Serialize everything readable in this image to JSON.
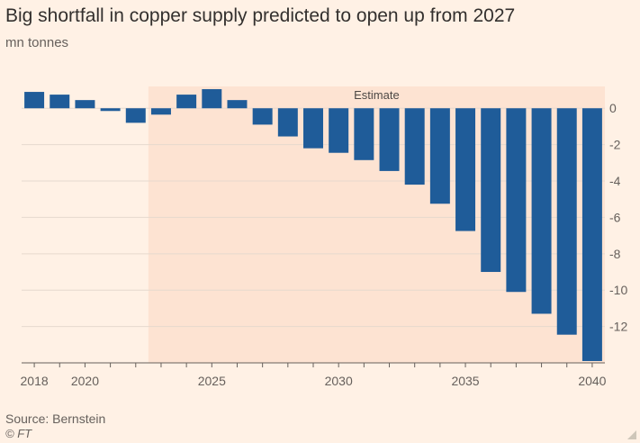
{
  "chart_data": {
    "type": "bar",
    "title": "Big shortfall in copper supply predicted to open up from 2027",
    "subtitle": "mn tonnes",
    "x": [
      2018,
      2019,
      2020,
      2021,
      2022,
      2023,
      2024,
      2025,
      2026,
      2027,
      2028,
      2029,
      2030,
      2031,
      2032,
      2033,
      2034,
      2035,
      2036,
      2037,
      2038,
      2039,
      2040
    ],
    "values": [
      0.9,
      0.75,
      0.45,
      -0.15,
      -0.8,
      -0.35,
      0.75,
      1.05,
      0.45,
      -0.9,
      -1.55,
      -2.2,
      -2.45,
      -2.85,
      -3.45,
      -4.2,
      -5.25,
      -6.75,
      -9.0,
      -10.1,
      -11.3,
      -12.45,
      -13.9
    ],
    "xticks": [
      2018,
      2020,
      2025,
      2030,
      2035,
      2040
    ],
    "yticks": [
      0,
      -2,
      -4,
      -6,
      -8,
      -10,
      -12
    ],
    "ylim": [
      -14,
      1.2
    ],
    "xlim": [
      2017.5,
      2040.5
    ],
    "estimate_label": "Estimate",
    "estimate_start": 2022.5,
    "grid": true,
    "yaxis_side": "right",
    "colors": {
      "bar": "#1F5C99",
      "background": "#FFF1E5",
      "estimate_shade": "#FDE3D2",
      "grid": "#E6D9CE",
      "axis": "#66605C"
    }
  },
  "footer": {
    "source": "Source: Bernstein",
    "copyright": "© FT"
  }
}
